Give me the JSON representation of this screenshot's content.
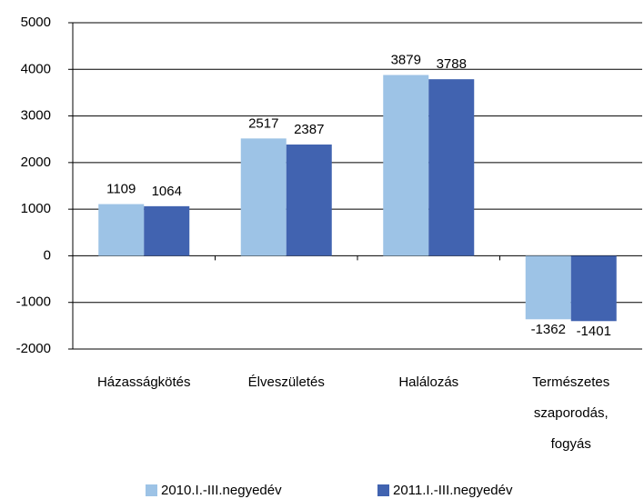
{
  "chart_data": {
    "type": "bar",
    "categories": [
      "Házasságkötés",
      "Élveszületés",
      "Halálozás",
      "Természetes szaporodás, fogyás"
    ],
    "series": [
      {
        "name": "2010.I.-III.negyedév",
        "color": "#9dc3e6",
        "values": [
          1109,
          2517,
          3879,
          -1362
        ]
      },
      {
        "name": "2011.I.-III.negyedév",
        "color": "#4163b0",
        "values": [
          1064,
          2387,
          3788,
          -1401
        ]
      }
    ],
    "ylim": [
      -2000,
      5000
    ],
    "yticks": [
      -2000,
      -1000,
      0,
      1000,
      2000,
      3000,
      4000,
      5000
    ],
    "grid": true,
    "legend": "bottom"
  }
}
